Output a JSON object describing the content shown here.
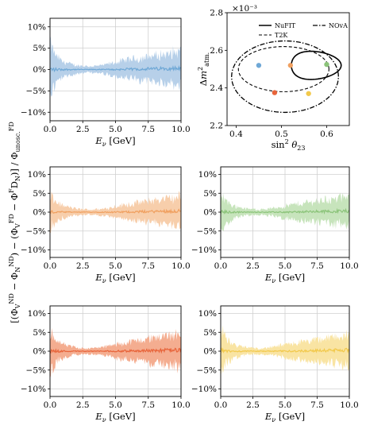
{
  "chart_data": [
    {
      "id": "panel-blue",
      "type": "area",
      "color": "#6fa8d6",
      "band_color": "#b3cee8",
      "xlim": [
        0,
        10
      ],
      "ylim": [
        -12,
        12
      ],
      "xticks": [
        "0.0",
        "2.5",
        "5.0",
        "7.5",
        "10.0"
      ],
      "yticks": [
        "10%",
        "5%",
        "0%",
        "-5%",
        "-10%"
      ],
      "xlabel": "E_ν [GeV]",
      "envelope": {
        "x": [
          0,
          0.5,
          1,
          2,
          3,
          4,
          5,
          6,
          7,
          8,
          9,
          10
        ],
        "half_width": [
          8,
          4,
          2.5,
          1.3,
          1.0,
          1.3,
          2.3,
          3.0,
          3.6,
          4.1,
          4.7,
          5.5
        ]
      },
      "grid": true
    },
    {
      "id": "panel-orange",
      "type": "area",
      "color": "#f0a060",
      "band_color": "#f7cba6",
      "xlim": [
        0,
        10
      ],
      "ylim": [
        -12,
        12
      ],
      "xticks": [
        "0.0",
        "2.5",
        "5.0",
        "7.5",
        "10.0"
      ],
      "yticks": [
        "10%",
        "5%",
        "0%",
        "-5%",
        "-10%"
      ],
      "xlabel": "E_ν [GeV]",
      "envelope": {
        "x": [
          0,
          0.5,
          1,
          2,
          3,
          4,
          5,
          6,
          7,
          8,
          9,
          10
        ],
        "half_width": [
          6,
          3.5,
          2.2,
          1.2,
          0.9,
          1.2,
          2.0,
          2.8,
          3.4,
          4.0,
          4.6,
          5.2
        ]
      },
      "grid": true
    },
    {
      "id": "panel-green",
      "type": "area",
      "color": "#8cc47a",
      "band_color": "#c4e3b8",
      "xlim": [
        0,
        10
      ],
      "ylim": [
        -12,
        12
      ],
      "xticks": [
        "0.0",
        "2.5",
        "5.0",
        "7.5",
        "10.0"
      ],
      "yticks": [
        "10%",
        "5%",
        "0%",
        "-5%",
        "-10%"
      ],
      "xlabel": "E_ν [GeV]",
      "envelope": {
        "x": [
          0,
          0.5,
          1,
          2,
          3,
          4,
          5,
          6,
          7,
          8,
          9,
          10
        ],
        "half_width": [
          7,
          3.8,
          2.3,
          1.2,
          1.0,
          1.3,
          2.2,
          2.9,
          3.5,
          4.0,
          4.6,
          5.0
        ]
      },
      "grid": true
    },
    {
      "id": "panel-red",
      "type": "area",
      "color": "#e8643a",
      "band_color": "#f3a98a",
      "xlim": [
        0,
        10
      ],
      "ylim": [
        -12,
        12
      ],
      "xticks": [
        "0.0",
        "2.5",
        "5.0",
        "7.5",
        "10.0"
      ],
      "yticks": [
        "10%",
        "5%",
        "0%",
        "-5%",
        "-10%"
      ],
      "xlabel": "E_ν [GeV]",
      "envelope": {
        "x": [
          0,
          0.5,
          1,
          2,
          3,
          4,
          5,
          6,
          7,
          8,
          9,
          10
        ],
        "half_width": [
          8,
          4,
          2.4,
          1.3,
          1.0,
          1.4,
          2.4,
          3.2,
          3.9,
          4.6,
          5.3,
          6.0
        ]
      },
      "grid": true
    },
    {
      "id": "panel-yellow",
      "type": "area",
      "color": "#f2c94c",
      "band_color": "#f9e39e",
      "xlim": [
        0,
        10
      ],
      "ylim": [
        -12,
        12
      ],
      "xticks": [
        "0.0",
        "2.5",
        "5.0",
        "7.5",
        "10.0"
      ],
      "yticks": [
        "10%",
        "5%",
        "0%",
        "-5%",
        "-10%"
      ],
      "xlabel": "E_ν [GeV]",
      "envelope": {
        "x": [
          0,
          0.5,
          1,
          2,
          3,
          4,
          5,
          6,
          7,
          8,
          9,
          10
        ],
        "half_width": [
          8,
          4,
          2.4,
          1.3,
          1.0,
          1.4,
          2.3,
          3.0,
          3.6,
          4.2,
          4.8,
          5.5
        ]
      },
      "grid": true
    },
    {
      "id": "panel-contour",
      "type": "scatter",
      "xlim": [
        0.38,
        0.65
      ],
      "ylim": [
        2.2,
        2.8
      ],
      "xticks": [
        "0.4",
        "0.5",
        "0.6"
      ],
      "yticks": [
        "2.8",
        "2.6",
        "2.4",
        "2.2"
      ],
      "exponent_label": "×10⁻³",
      "xlabel": "sin² θ₂₃",
      "ylabel": "Δm²atm.",
      "legend": [
        "NuFIT",
        "T2K",
        "NOvA"
      ],
      "legend_position": "top",
      "points": [
        {
          "x": 0.45,
          "y": 2.52,
          "color": "#6fa8d6"
        },
        {
          "x": 0.485,
          "y": 2.375,
          "color": "#e8643a"
        },
        {
          "x": 0.52,
          "y": 2.52,
          "color": "#f0a060"
        },
        {
          "x": 0.56,
          "y": 2.37,
          "color": "#f2c94c"
        },
        {
          "x": 0.6,
          "y": 2.525,
          "color": "#8cc47a"
        }
      ]
    }
  ],
  "shared_ylabel": "[(Φ_V^{ND} − Φ_N^{ND}) − (Φ_V^{FD} − Φ^F D_N)] / Φ_{unosc.}^{FD}"
}
